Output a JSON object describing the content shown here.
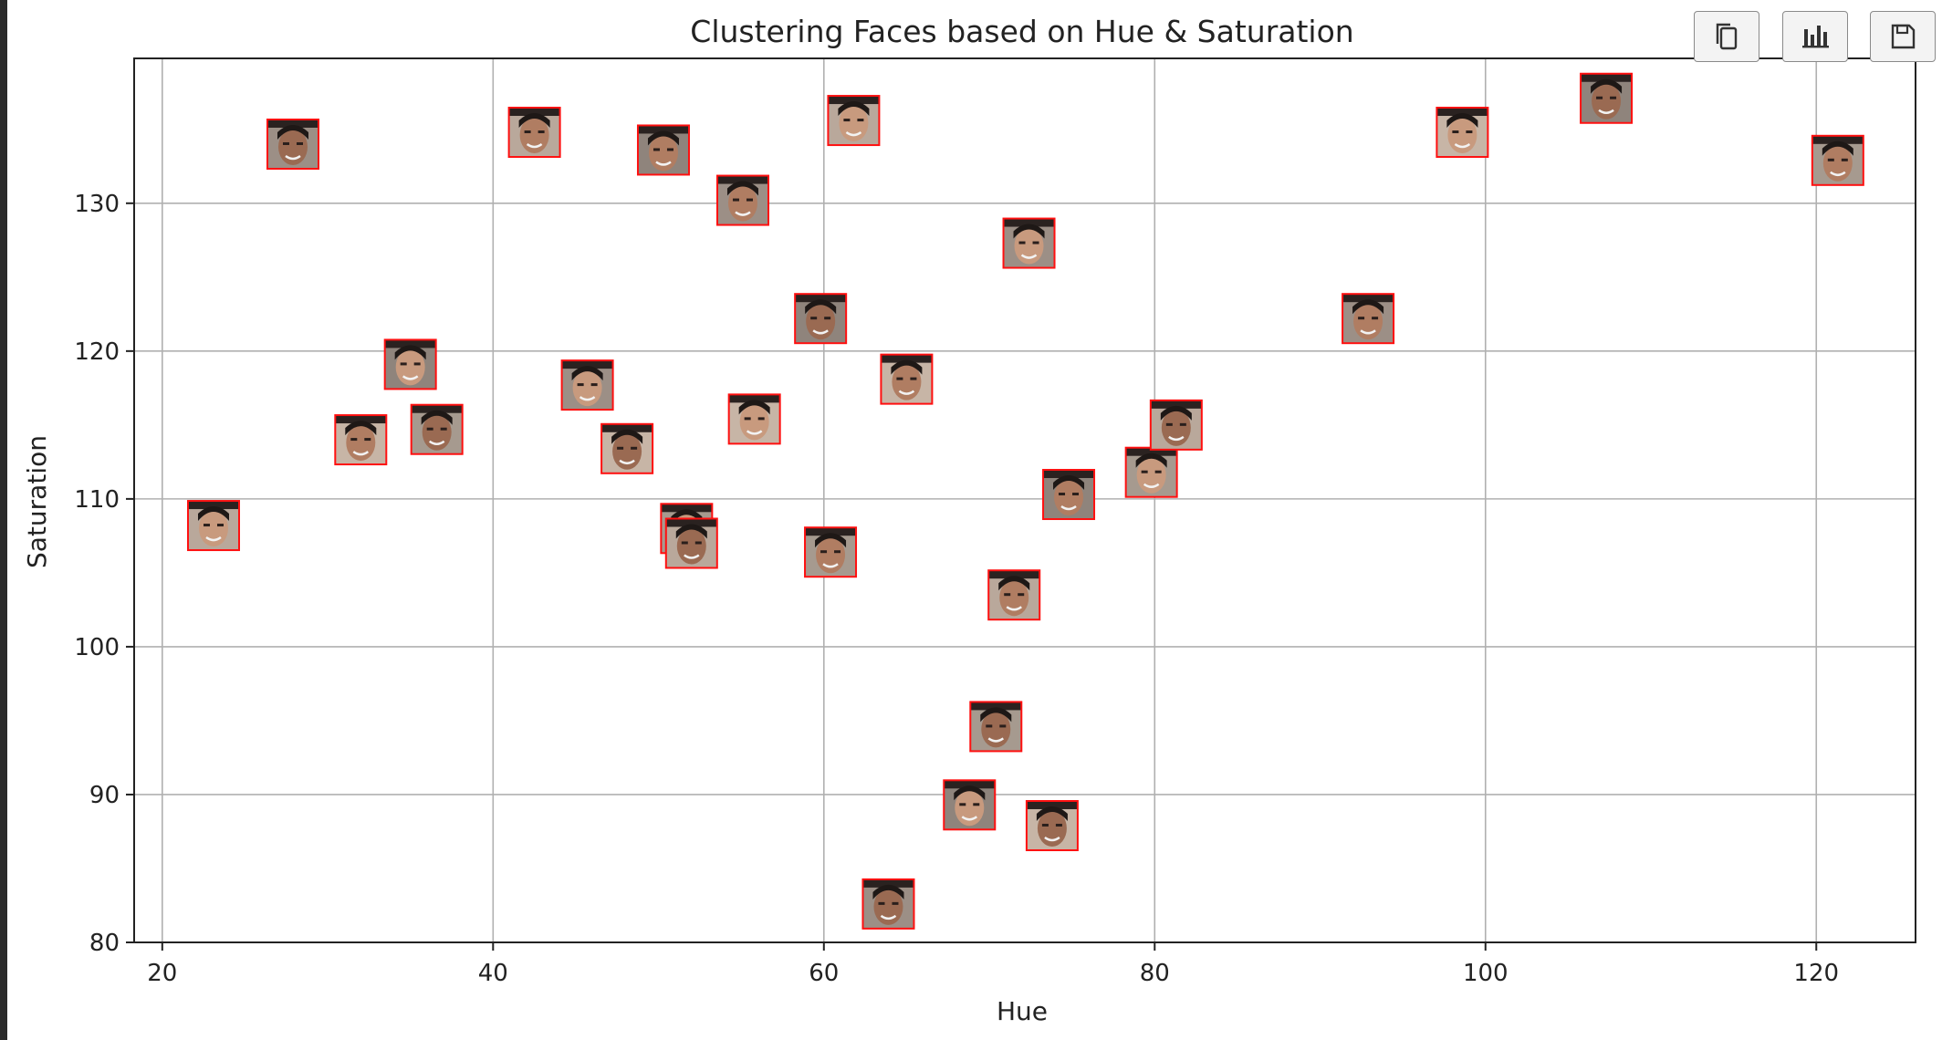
{
  "toolbar": {
    "buttons": [
      {
        "name": "copy",
        "icon": "copy-icon"
      },
      {
        "name": "chart",
        "icon": "bar-chart-icon"
      },
      {
        "name": "save",
        "icon": "save-icon"
      }
    ]
  },
  "chart_data": {
    "type": "scatter",
    "title": "Clustering Faces based on Hue & Saturation",
    "xlabel": "Hue",
    "ylabel": "Saturation",
    "xlim": [
      18.3,
      126.0
    ],
    "ylim": [
      80,
      139.8
    ],
    "xticks": [
      20,
      40,
      60,
      80,
      100,
      120
    ],
    "yticks": [
      80,
      90,
      100,
      110,
      120,
      130
    ],
    "grid": true,
    "marker": "face-thumbnail",
    "frame_color": "#ff1010",
    "points": [
      {
        "x": 23.1,
        "y": 108.2
      },
      {
        "x": 27.9,
        "y": 134.0
      },
      {
        "x": 32.0,
        "y": 114.0
      },
      {
        "x": 35.0,
        "y": 119.1
      },
      {
        "x": 36.6,
        "y": 114.7
      },
      {
        "x": 42.5,
        "y": 134.8
      },
      {
        "x": 45.7,
        "y": 117.7
      },
      {
        "x": 48.1,
        "y": 113.4
      },
      {
        "x": 50.3,
        "y": 133.6
      },
      {
        "x": 51.7,
        "y": 108.0
      },
      {
        "x": 52.0,
        "y": 107.0
      },
      {
        "x": 55.1,
        "y": 130.2
      },
      {
        "x": 55.8,
        "y": 115.4
      },
      {
        "x": 59.8,
        "y": 122.2
      },
      {
        "x": 60.4,
        "y": 106.4
      },
      {
        "x": 61.8,
        "y": 135.6
      },
      {
        "x": 63.9,
        "y": 82.6
      },
      {
        "x": 65.0,
        "y": 118.1
      },
      {
        "x": 68.8,
        "y": 89.3
      },
      {
        "x": 70.4,
        "y": 94.6
      },
      {
        "x": 71.5,
        "y": 103.5
      },
      {
        "x": 72.4,
        "y": 127.3
      },
      {
        "x": 73.8,
        "y": 87.9
      },
      {
        "x": 74.8,
        "y": 110.3
      },
      {
        "x": 79.8,
        "y": 111.8
      },
      {
        "x": 81.3,
        "y": 115.0
      },
      {
        "x": 92.9,
        "y": 122.2
      },
      {
        "x": 98.6,
        "y": 134.8
      },
      {
        "x": 107.3,
        "y": 137.1
      },
      {
        "x": 121.3,
        "y": 132.9
      }
    ]
  }
}
